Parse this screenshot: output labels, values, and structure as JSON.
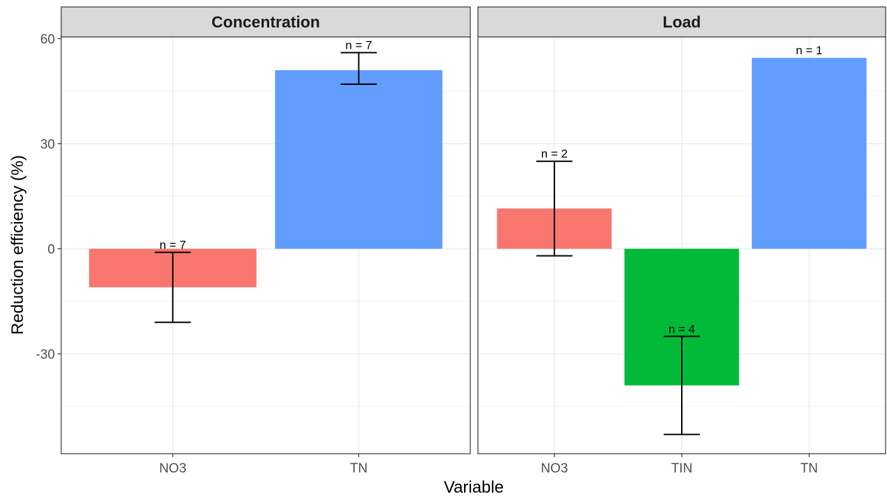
{
  "chart_data": {
    "type": "bar",
    "ylabel": "Reduction efficiency (%)",
    "xlabel": "Variable",
    "ylim": [
      -58.5,
      60.5
    ],
    "yticks": [
      -30,
      0,
      30,
      60
    ],
    "grid": true,
    "legend": "none",
    "colors": {
      "NO3": "#f8766d",
      "TIN": "#00ba38",
      "TN": "#619cff"
    },
    "panels": [
      {
        "title": "Concentration",
        "categories": [
          "NO3",
          "TN"
        ],
        "values": [
          -11,
          51
        ],
        "error_low": [
          -21,
          47
        ],
        "error_high": [
          -1,
          56
        ],
        "n_labels": [
          "n = 7",
          "n = 7"
        ]
      },
      {
        "title": "Load",
        "categories": [
          "NO3",
          "TIN",
          "TN"
        ],
        "values": [
          11.5,
          -39,
          54.5
        ],
        "error_low": [
          -2,
          -53,
          null
        ],
        "error_high": [
          25,
          -25,
          null
        ],
        "n_labels": [
          "n = 2",
          "n = 4",
          "n = 1"
        ]
      }
    ]
  }
}
